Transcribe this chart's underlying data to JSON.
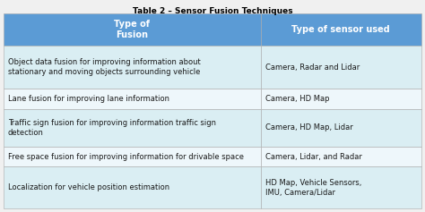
{
  "title": "Table 2 – Sensor Fusion Techniques",
  "header": [
    "Type of\nFusion",
    "Type of sensor used"
  ],
  "rows": [
    [
      "Object data fusion for improving information about\nstationary and moving objects surrounding vehicle",
      "Camera, Radar and Lidar"
    ],
    [
      "Lane fusion for improving lane information",
      "Camera, HD Map"
    ],
    [
      "Traffic sign fusion for improving information traffic sign\ndetection",
      "Camera, HD Map, Lidar"
    ],
    [
      "Free space fusion for improving information for drivable space",
      "Camera, Lidar, and Radar"
    ],
    [
      "Localization for vehicle position estimation",
      "HD Map, Vehicle Sensors,\nIMU, Camera/Lidar"
    ]
  ],
  "header_bg": "#5B9BD5",
  "header_text_color": "#FFFFFF",
  "row_bg_odd": "#DAEEF3",
  "row_bg_even": "#EEF7FB",
  "border_color": "#AAAAAA",
  "title_color": "#000000",
  "text_color": "#1A1A1A",
  "col_split": 0.615,
  "figsize": [
    4.74,
    2.37
  ],
  "dpi": 100,
  "title_fontsize": 6.5,
  "header_fontsize": 7.0,
  "cell_fontsize": 6.0,
  "outer_bg": "#F0F0F0"
}
